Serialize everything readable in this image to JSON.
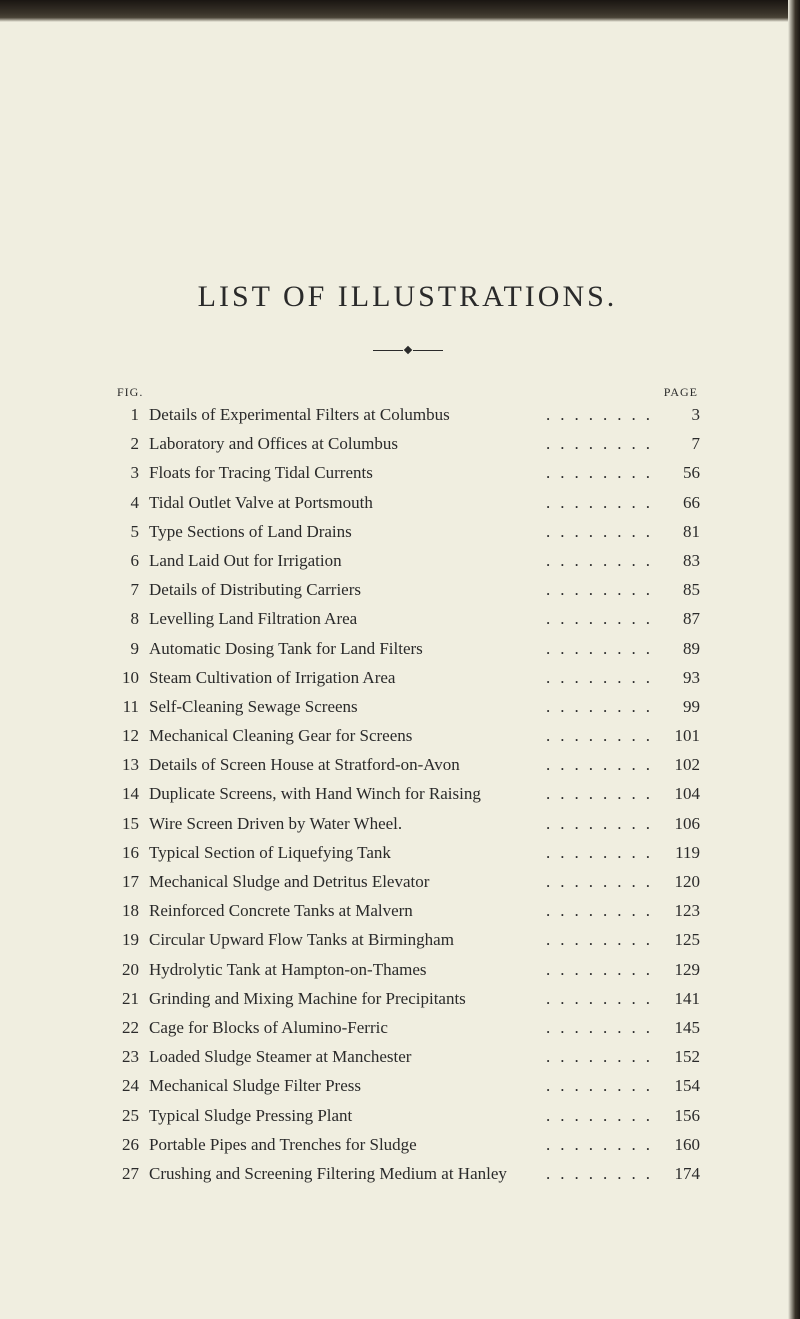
{
  "title": "LIST OF ILLUSTRATIONS.",
  "headers": {
    "left": "FIG.",
    "right": "PAGE"
  },
  "items": [
    {
      "fig": "1",
      "text": "Details of Experimental Filters at Columbus",
      "page": "3"
    },
    {
      "fig": "2",
      "text": "Laboratory and Offices at Columbus",
      "page": "7"
    },
    {
      "fig": "3",
      "text": "Floats for Tracing Tidal Currents",
      "page": "56"
    },
    {
      "fig": "4",
      "text": "Tidal Outlet Valve at Portsmouth",
      "page": "66"
    },
    {
      "fig": "5",
      "text": "Type Sections of Land Drains",
      "page": "81"
    },
    {
      "fig": "6",
      "text": "Land Laid Out for Irrigation",
      "page": "83"
    },
    {
      "fig": "7",
      "text": "Details of Distributing Carriers",
      "page": "85"
    },
    {
      "fig": "8",
      "text": "Levelling Land Filtration Area",
      "page": "87"
    },
    {
      "fig": "9",
      "text": "Automatic Dosing Tank for Land Filters",
      "page": "89"
    },
    {
      "fig": "10",
      "text": "Steam Cultivation of Irrigation Area",
      "page": "93"
    },
    {
      "fig": "11",
      "text": "Self-Cleaning Sewage Screens",
      "page": "99"
    },
    {
      "fig": "12",
      "text": "Mechanical Cleaning Gear for Screens",
      "page": "101"
    },
    {
      "fig": "13",
      "text": "Details of Screen House at Stratford-on-Avon",
      "page": "102"
    },
    {
      "fig": "14",
      "text": "Duplicate Screens, with Hand Winch for Raising",
      "page": "104"
    },
    {
      "fig": "15",
      "text": "Wire Screen Driven by Water Wheel.",
      "page": "106"
    },
    {
      "fig": "16",
      "text": "Typical Section of Liquefying Tank",
      "page": "119"
    },
    {
      "fig": "17",
      "text": "Mechanical Sludge and Detritus Elevator",
      "page": "120"
    },
    {
      "fig": "18",
      "text": "Reinforced Concrete Tanks at Malvern",
      "page": "123"
    },
    {
      "fig": "19",
      "text": "Circular Upward Flow Tanks at Birmingham",
      "page": "125"
    },
    {
      "fig": "20",
      "text": "Hydrolytic Tank at Hampton-on-Thames",
      "page": "129"
    },
    {
      "fig": "21",
      "text": "Grinding and Mixing Machine for Precipitants",
      "page": "141"
    },
    {
      "fig": "22",
      "text": "Cage for Blocks of Alumino-Ferric",
      "page": "145"
    },
    {
      "fig": "23",
      "text": "Loaded Sludge Steamer at Manchester",
      "page": "152"
    },
    {
      "fig": "24",
      "text": "Mechanical Sludge Filter Press",
      "page": "154"
    },
    {
      "fig": "25",
      "text": "Typical Sludge Pressing Plant",
      "page": "156"
    },
    {
      "fig": "26",
      "text": "Portable Pipes and Trenches for Sludge",
      "page": "160"
    },
    {
      "fig": "27",
      "text": "Crushing and Screening Filtering Medium at Hanley",
      "page": "174"
    }
  ],
  "styling": {
    "background_color": "#f0eee0",
    "text_color": "#2a2a2a",
    "title_fontsize": 30,
    "body_fontsize": 17,
    "header_fontsize": 12,
    "font_family": "Times New Roman"
  }
}
